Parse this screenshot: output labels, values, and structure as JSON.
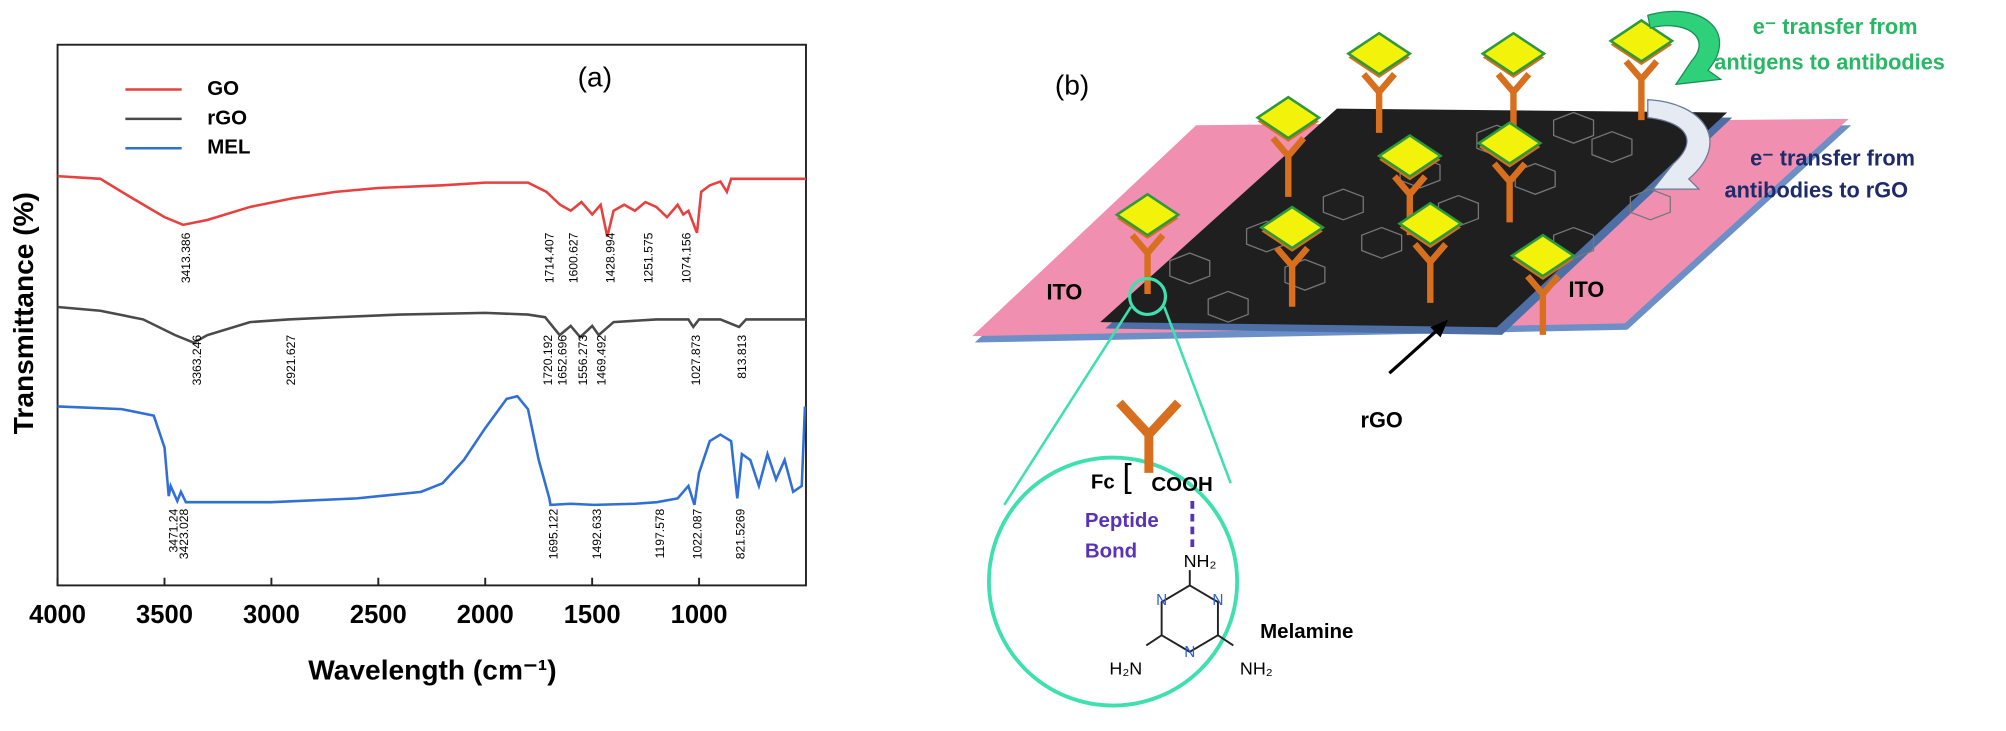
{
  "chart_data": {
    "type": "line",
    "panel": "(a)",
    "xlabel": "Wavelength (cm⁻¹)",
    "ylabel": "Transmittance (%)",
    "xlim": [
      4000,
      500
    ],
    "xticks": [
      4000,
      3500,
      3000,
      2500,
      2000,
      1500,
      1000
    ],
    "ylim": [
      0,
      100
    ],
    "legend": "upper left",
    "series": [
      {
        "name": "GO",
        "color": "#e8403f",
        "x": [
          4000,
          3800,
          3650,
          3500,
          3413,
          3300,
          3100,
          2900,
          2700,
          2500,
          2200,
          2000,
          1800,
          1714,
          1650,
          1600,
          1550,
          1500,
          1460,
          1429,
          1400,
          1350,
          1300,
          1251,
          1200,
          1150,
          1100,
          1074,
          1050,
          1010,
          990,
          950,
          900,
          870,
          850,
          800,
          700,
          500
        ],
        "values": [
          75.7,
          75.2,
          71.6,
          68.1,
          66.7,
          67.6,
          70.0,
          71.6,
          72.8,
          73.5,
          74.0,
          74.5,
          74.5,
          72.8,
          70.4,
          69.3,
          70.9,
          68.6,
          70.4,
          64.5,
          69.3,
          70.4,
          69.3,
          70.9,
          70.0,
          68.1,
          70.4,
          68.6,
          69.3,
          65.2,
          72.8,
          74.0,
          74.7,
          72.8,
          75.2,
          75.2,
          75.2,
          75.2
        ],
        "peaks": [
          3413.386,
          1714.407,
          1600.627,
          1428.994,
          1251.575,
          1074.156
        ]
      },
      {
        "name": "rGO",
        "color": "#4a4a4a",
        "x": [
          4000,
          3800,
          3600,
          3450,
          3363,
          3300,
          3100,
          2921,
          2700,
          2400,
          2000,
          1800,
          1720,
          1652,
          1600,
          1556,
          1500,
          1469,
          1400,
          1200,
          1050,
          1027,
          1000,
          900,
          813,
          780,
          500
        ],
        "values": [
          51.5,
          50.8,
          49.2,
          46.3,
          44.9,
          46.3,
          48.7,
          49.2,
          49.6,
          50.1,
          50.4,
          50.1,
          49.6,
          46.3,
          48.0,
          45.9,
          48.0,
          46.3,
          48.7,
          49.2,
          49.2,
          47.8,
          49.2,
          49.2,
          47.8,
          49.2,
          49.2
        ],
        "peaks": [
          3363.246,
          2921.627,
          1720.192,
          1652.696,
          1556.273,
          1469.492,
          1027.873,
          813.813
        ]
      },
      {
        "name": "MEL",
        "color": "#2f6fd6",
        "x": [
          4000,
          3700,
          3550,
          3500,
          3480,
          3471,
          3440,
          3423,
          3400,
          3000,
          2600,
          2300,
          2200,
          2100,
          2000,
          1900,
          1850,
          1800,
          1750,
          1700,
          1695,
          1600,
          1492,
          1300,
          1197,
          1100,
          1050,
          1022,
          1000,
          950,
          900,
          850,
          821,
          800,
          760,
          720,
          680,
          640,
          600,
          560,
          520,
          505
        ],
        "values": [
          33.1,
          32.6,
          31.4,
          25.5,
          16.5,
          18.4,
          15.6,
          17.3,
          15.4,
          15.4,
          16.1,
          17.3,
          18.9,
          23.2,
          29.1,
          34.5,
          35.0,
          32.6,
          23.2,
          16.1,
          14.9,
          15.1,
          14.9,
          15.1,
          15.4,
          16.1,
          18.4,
          14.9,
          20.8,
          26.7,
          27.9,
          26.7,
          16.1,
          24.3,
          23.2,
          18.4,
          24.3,
          19.6,
          23.2,
          17.3,
          18.4,
          33.1
        ],
        "peaks": [
          3423.028,
          3471.24,
          1695.122,
          1492.633,
          1197.578,
          1022.087,
          821.5269
        ]
      }
    ]
  },
  "diagram": {
    "panel": "(b)",
    "ito_left": "ITO",
    "ito_right": "ITO",
    "rgo": "rGO",
    "transfer_top": [
      "e⁻ transfer from",
      "antigens to antibodies"
    ],
    "transfer_bottom": [
      "e⁻ transfer from",
      "antibodies to rGO"
    ],
    "fc": "Fc",
    "cooh": "COOH",
    "bond": [
      "Peptide",
      "Bond"
    ],
    "melamine": "Melamine",
    "nh2_top": "NH₂",
    "h2n": "H₂N",
    "nh2_right": "NH₂",
    "n": "N"
  }
}
